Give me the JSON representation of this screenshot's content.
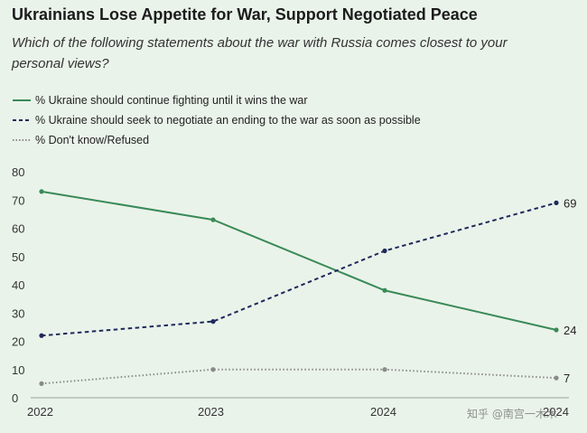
{
  "title": "Ukrainians Lose Appetite for War, Support Negotiated Peace",
  "subtitle": "Which of the following statements about the war with Russia comes closest to your personal views?",
  "watermark": "知乎 @南宫一木木",
  "chart_data": {
    "type": "line",
    "x": [
      "2022",
      "2023",
      "2024",
      "2024"
    ],
    "ylim": [
      0,
      80
    ],
    "yticks": [
      "0",
      "10",
      "20",
      "30",
      "40",
      "50",
      "60",
      "70",
      "80"
    ],
    "grid": false,
    "legend_position": "top-left",
    "series": [
      {
        "name": "% Ukraine should continue fighting until it wins the war",
        "style": "solid",
        "color": "#3a8a57",
        "values": [
          73,
          63,
          38,
          24
        ],
        "end_label": "24"
      },
      {
        "name": "% Ukraine should seek to negotiate an ending to the war as soon as possible",
        "style": "dashed",
        "color": "#1e2a5a",
        "values": [
          22,
          27,
          52,
          69
        ],
        "end_label": "69"
      },
      {
        "name": "% Don't know/Refused",
        "style": "dotted",
        "color": "#8a8a8a",
        "values": [
          5,
          10,
          10,
          7
        ],
        "end_label": "7"
      }
    ]
  }
}
